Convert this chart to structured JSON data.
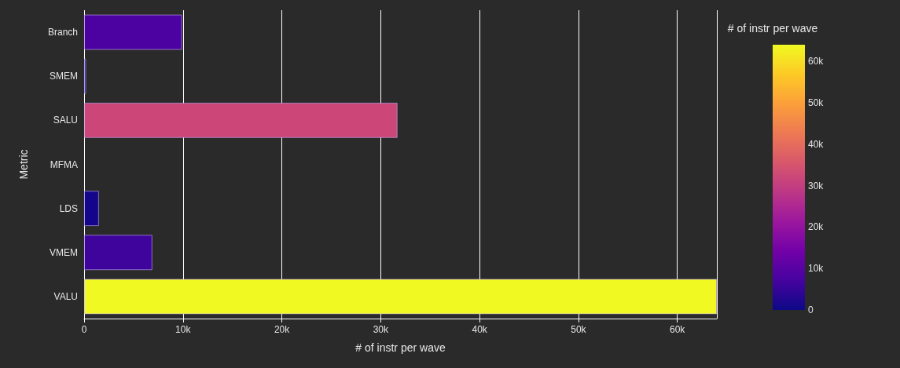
{
  "chart_data": {
    "type": "bar",
    "orientation": "horizontal",
    "xlabel": "# of instr per wave",
    "ylabel": "Metric",
    "clabel": "# of instr per wave",
    "categories": [
      "Branch",
      "SMEM",
      "SALU",
      "MFMA",
      "LDS",
      "VMEM",
      "VALU"
    ],
    "values": [
      9900,
      200,
      31700,
      0,
      1500,
      6900,
      64000
    ],
    "colors": [
      "#4c02a1",
      "#0d0887",
      "#cc4778",
      "#0d0887",
      "#14068a",
      "#3e049c",
      "#f0f921"
    ],
    "xlim": [
      0,
      64000
    ],
    "xticks": [
      0,
      {
        "value": 10000,
        "label": "10k"
      },
      {
        "value": 20000,
        "label": "20k"
      },
      {
        "value": 30000,
        "label": "30k"
      },
      {
        "value": 40000,
        "label": "40k"
      },
      {
        "value": 50000,
        "label": "50k"
      },
      {
        "value": 60000,
        "label": "60k"
      }
    ],
    "clim": [
      0,
      64000
    ],
    "cticks": [
      0,
      {
        "value": 10000,
        "label": "10k"
      },
      {
        "value": 20000,
        "label": "20k"
      },
      {
        "value": 30000,
        "label": "30k"
      },
      {
        "value": 40000,
        "label": "40k"
      },
      {
        "value": 50000,
        "label": "50k"
      },
      {
        "value": 60000,
        "label": "60k"
      }
    ],
    "grid": "x"
  }
}
